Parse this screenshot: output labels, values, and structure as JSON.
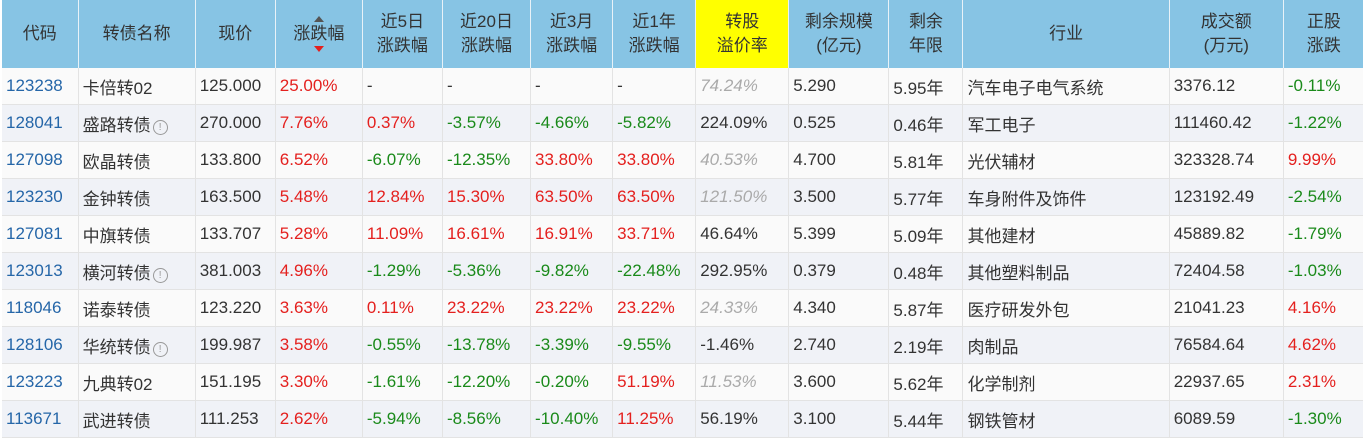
{
  "headers": [
    {
      "key": "code",
      "label": "代码"
    },
    {
      "key": "name",
      "label": "转债名称"
    },
    {
      "key": "price",
      "label": "现价"
    },
    {
      "key": "chg",
      "label": "涨跌幅",
      "sorted": "desc"
    },
    {
      "key": "chg5d",
      "label": "近5日\n涨跌幅"
    },
    {
      "key": "chg20d",
      "label": "近20日\n涨跌幅"
    },
    {
      "key": "chg3m",
      "label": "近3月\n涨跌幅"
    },
    {
      "key": "chg1y",
      "label": "近1年\n涨跌幅"
    },
    {
      "key": "premium",
      "label": "转股\n溢价率",
      "highlight": true
    },
    {
      "key": "size",
      "label": "剩余规模\n(亿元)"
    },
    {
      "key": "years",
      "label": "剩余\n年限"
    },
    {
      "key": "industry",
      "label": "行业"
    },
    {
      "key": "volume",
      "label": "成交额\n(万元)"
    },
    {
      "key": "stock_chg",
      "label": "正股\n涨跌"
    }
  ],
  "colors": {
    "up": "#e4201e",
    "down": "#1a8a1a",
    "header": "#87c4e4",
    "highlight": "#ffff00",
    "code": "#2566a8"
  },
  "rows": [
    {
      "code": "123238",
      "name": "卡倍转02",
      "price": "125.000",
      "chg": "25.00%",
      "chg5d": "-",
      "chg20d": "-",
      "chg3m": "-",
      "chg1y": "-",
      "premium": "74.24%",
      "premium_est": true,
      "size": "5.290",
      "years": "5.95年",
      "industry": "汽车电子电气系统",
      "volume": "3376.12",
      "stock_chg": "-0.11%"
    },
    {
      "code": "128041",
      "name": "盛路转债",
      "info": true,
      "price": "270.000",
      "chg": "7.76%",
      "chg5d": "0.37%",
      "chg20d": "-3.57%",
      "chg3m": "-4.66%",
      "chg1y": "-5.82%",
      "premium": "224.09%",
      "size": "0.525",
      "years": "0.46年",
      "industry": "军工电子",
      "volume": "111460.42",
      "stock_chg": "-1.22%"
    },
    {
      "code": "127098",
      "name": "欧晶转债",
      "price": "133.800",
      "chg": "6.52%",
      "chg5d": "-6.07%",
      "chg20d": "-12.35%",
      "chg3m": "33.80%",
      "chg1y": "33.80%",
      "premium": "40.53%",
      "premium_est": true,
      "size": "4.700",
      "years": "5.81年",
      "industry": "光伏辅材",
      "volume": "323328.74",
      "stock_chg": "9.99%"
    },
    {
      "code": "123230",
      "name": "金钟转债",
      "price": "163.500",
      "chg": "5.48%",
      "chg5d": "12.84%",
      "chg20d": "15.30%",
      "chg3m": "63.50%",
      "chg1y": "63.50%",
      "premium": "121.50%",
      "premium_est": true,
      "size": "3.500",
      "years": "5.77年",
      "industry": "车身附件及饰件",
      "volume": "123192.49",
      "stock_chg": "-2.54%"
    },
    {
      "code": "127081",
      "name": "中旗转债",
      "price": "133.707",
      "chg": "5.28%",
      "chg5d": "11.09%",
      "chg20d": "16.61%",
      "chg3m": "16.91%",
      "chg1y": "33.71%",
      "premium": "46.64%",
      "size": "5.399",
      "years": "5.09年",
      "industry": "其他建材",
      "volume": "45889.82",
      "stock_chg": "-1.79%"
    },
    {
      "code": "123013",
      "name": "横河转债",
      "info": true,
      "price": "381.003",
      "chg": "4.96%",
      "chg5d": "-1.29%",
      "chg20d": "-5.36%",
      "chg3m": "-9.82%",
      "chg1y": "-22.48%",
      "premium": "292.95%",
      "size": "0.379",
      "years": "0.48年",
      "industry": "其他塑料制品",
      "volume": "72404.58",
      "stock_chg": "-1.03%"
    },
    {
      "code": "118046",
      "name": "诺泰转债",
      "price": "123.220",
      "chg": "3.63%",
      "chg5d": "0.11%",
      "chg20d": "23.22%",
      "chg3m": "23.22%",
      "chg1y": "23.22%",
      "premium": "24.33%",
      "premium_est": true,
      "size": "4.340",
      "years": "5.87年",
      "industry": "医疗研发外包",
      "volume": "21041.23",
      "stock_chg": "4.16%"
    },
    {
      "code": "128106",
      "name": "华统转债",
      "info": true,
      "price": "199.987",
      "chg": "3.58%",
      "chg5d": "-0.55%",
      "chg20d": "-13.78%",
      "chg3m": "-3.39%",
      "chg1y": "-9.55%",
      "premium": "-1.46%",
      "size": "2.740",
      "years": "2.19年",
      "industry": "肉制品",
      "volume": "76584.64",
      "stock_chg": "4.62%"
    },
    {
      "code": "123223",
      "name": "九典转02",
      "price": "151.195",
      "chg": "3.30%",
      "chg5d": "-1.61%",
      "chg20d": "-12.20%",
      "chg3m": "-0.20%",
      "chg1y": "51.19%",
      "premium": "11.53%",
      "premium_est": true,
      "size": "3.600",
      "years": "5.62年",
      "industry": "化学制剂",
      "volume": "22937.65",
      "stock_chg": "2.31%"
    },
    {
      "code": "113671",
      "name": "武进转债",
      "price": "111.253",
      "chg": "2.62%",
      "chg5d": "-5.94%",
      "chg20d": "-8.56%",
      "chg3m": "-10.40%",
      "chg1y": "11.25%",
      "premium": "56.19%",
      "size": "3.100",
      "years": "5.44年",
      "industry": "钢铁管材",
      "volume": "6089.59",
      "stock_chg": "-1.30%"
    }
  ]
}
